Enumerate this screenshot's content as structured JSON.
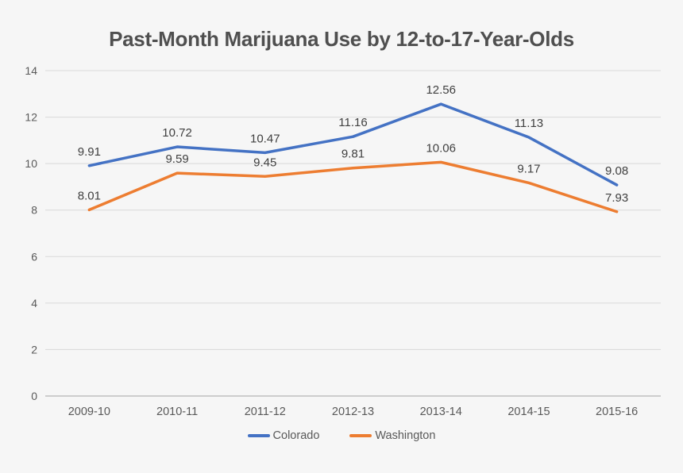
{
  "chart_data": {
    "type": "line",
    "title": "Past-Month Marijuana Use by 12-to-17-Year-Olds",
    "categories": [
      "2009-10",
      "2010-11",
      "2011-12",
      "2012-13",
      "2013-14",
      "2014-15",
      "2015-16"
    ],
    "series": [
      {
        "name": "Colorado",
        "color": "#4472C4",
        "values": [
          9.91,
          10.72,
          10.47,
          11.16,
          12.56,
          11.13,
          9.08
        ]
      },
      {
        "name": "Washington",
        "color": "#ED7D31",
        "values": [
          8.01,
          9.59,
          9.45,
          9.81,
          10.06,
          9.17,
          7.93
        ]
      }
    ],
    "xlabel": "",
    "ylabel": "",
    "ylim": [
      0,
      14
    ],
    "yticks": [
      0,
      2,
      4,
      6,
      8,
      10,
      12,
      14
    ],
    "grid": true,
    "data_labels": true,
    "legend_position": "bottom"
  },
  "theme": {
    "background": "#F6F6F6",
    "gridline_color": "#D9D9D9",
    "axis_line_color": "#BFBFBF",
    "title_color": "#4F4F4F",
    "tick_label_color": "#595959",
    "data_label_color": "#404040"
  }
}
